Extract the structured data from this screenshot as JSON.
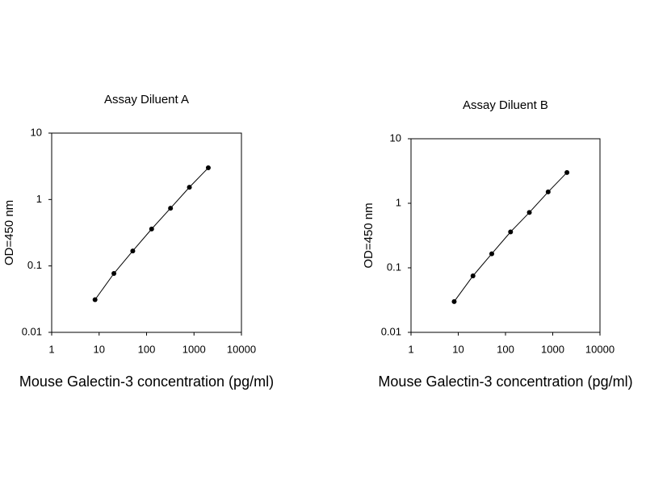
{
  "chart_data": [
    {
      "type": "line",
      "title": "Assay Diluent A",
      "xlabel": "Mouse Galectin-3 concentration (pg/ml)",
      "ylabel": "OD=450 nm",
      "log_x": true,
      "log_y": true,
      "color": "#000000",
      "xlim": [
        1,
        10000
      ],
      "xticks": [
        1,
        10,
        100,
        1000,
        10000
      ],
      "ylim": [
        0.01,
        10
      ],
      "yticks": [
        0.01,
        0.1,
        1,
        10
      ],
      "x": [
        8.2,
        20.5,
        51.2,
        128,
        320,
        800,
        2000
      ],
      "values": [
        0.031,
        0.077,
        0.168,
        0.36,
        0.74,
        1.53,
        3.0
      ]
    },
    {
      "type": "line",
      "title": "Assay Diluent B",
      "xlabel": "Mouse Galectin-3 concentration (pg/ml)",
      "ylabel": "OD=450 nm",
      "log_x": true,
      "log_y": true,
      "color": "#000000",
      "xlim": [
        1,
        10000
      ],
      "xticks": [
        1,
        10,
        100,
        1000,
        10000
      ],
      "ylim": [
        0.01,
        10
      ],
      "yticks": [
        0.01,
        0.1,
        1,
        10
      ],
      "x": [
        8.2,
        20.5,
        51.2,
        128,
        320,
        800,
        2000
      ],
      "values": [
        0.03,
        0.075,
        0.165,
        0.36,
        0.72,
        1.5,
        3.0
      ]
    }
  ]
}
